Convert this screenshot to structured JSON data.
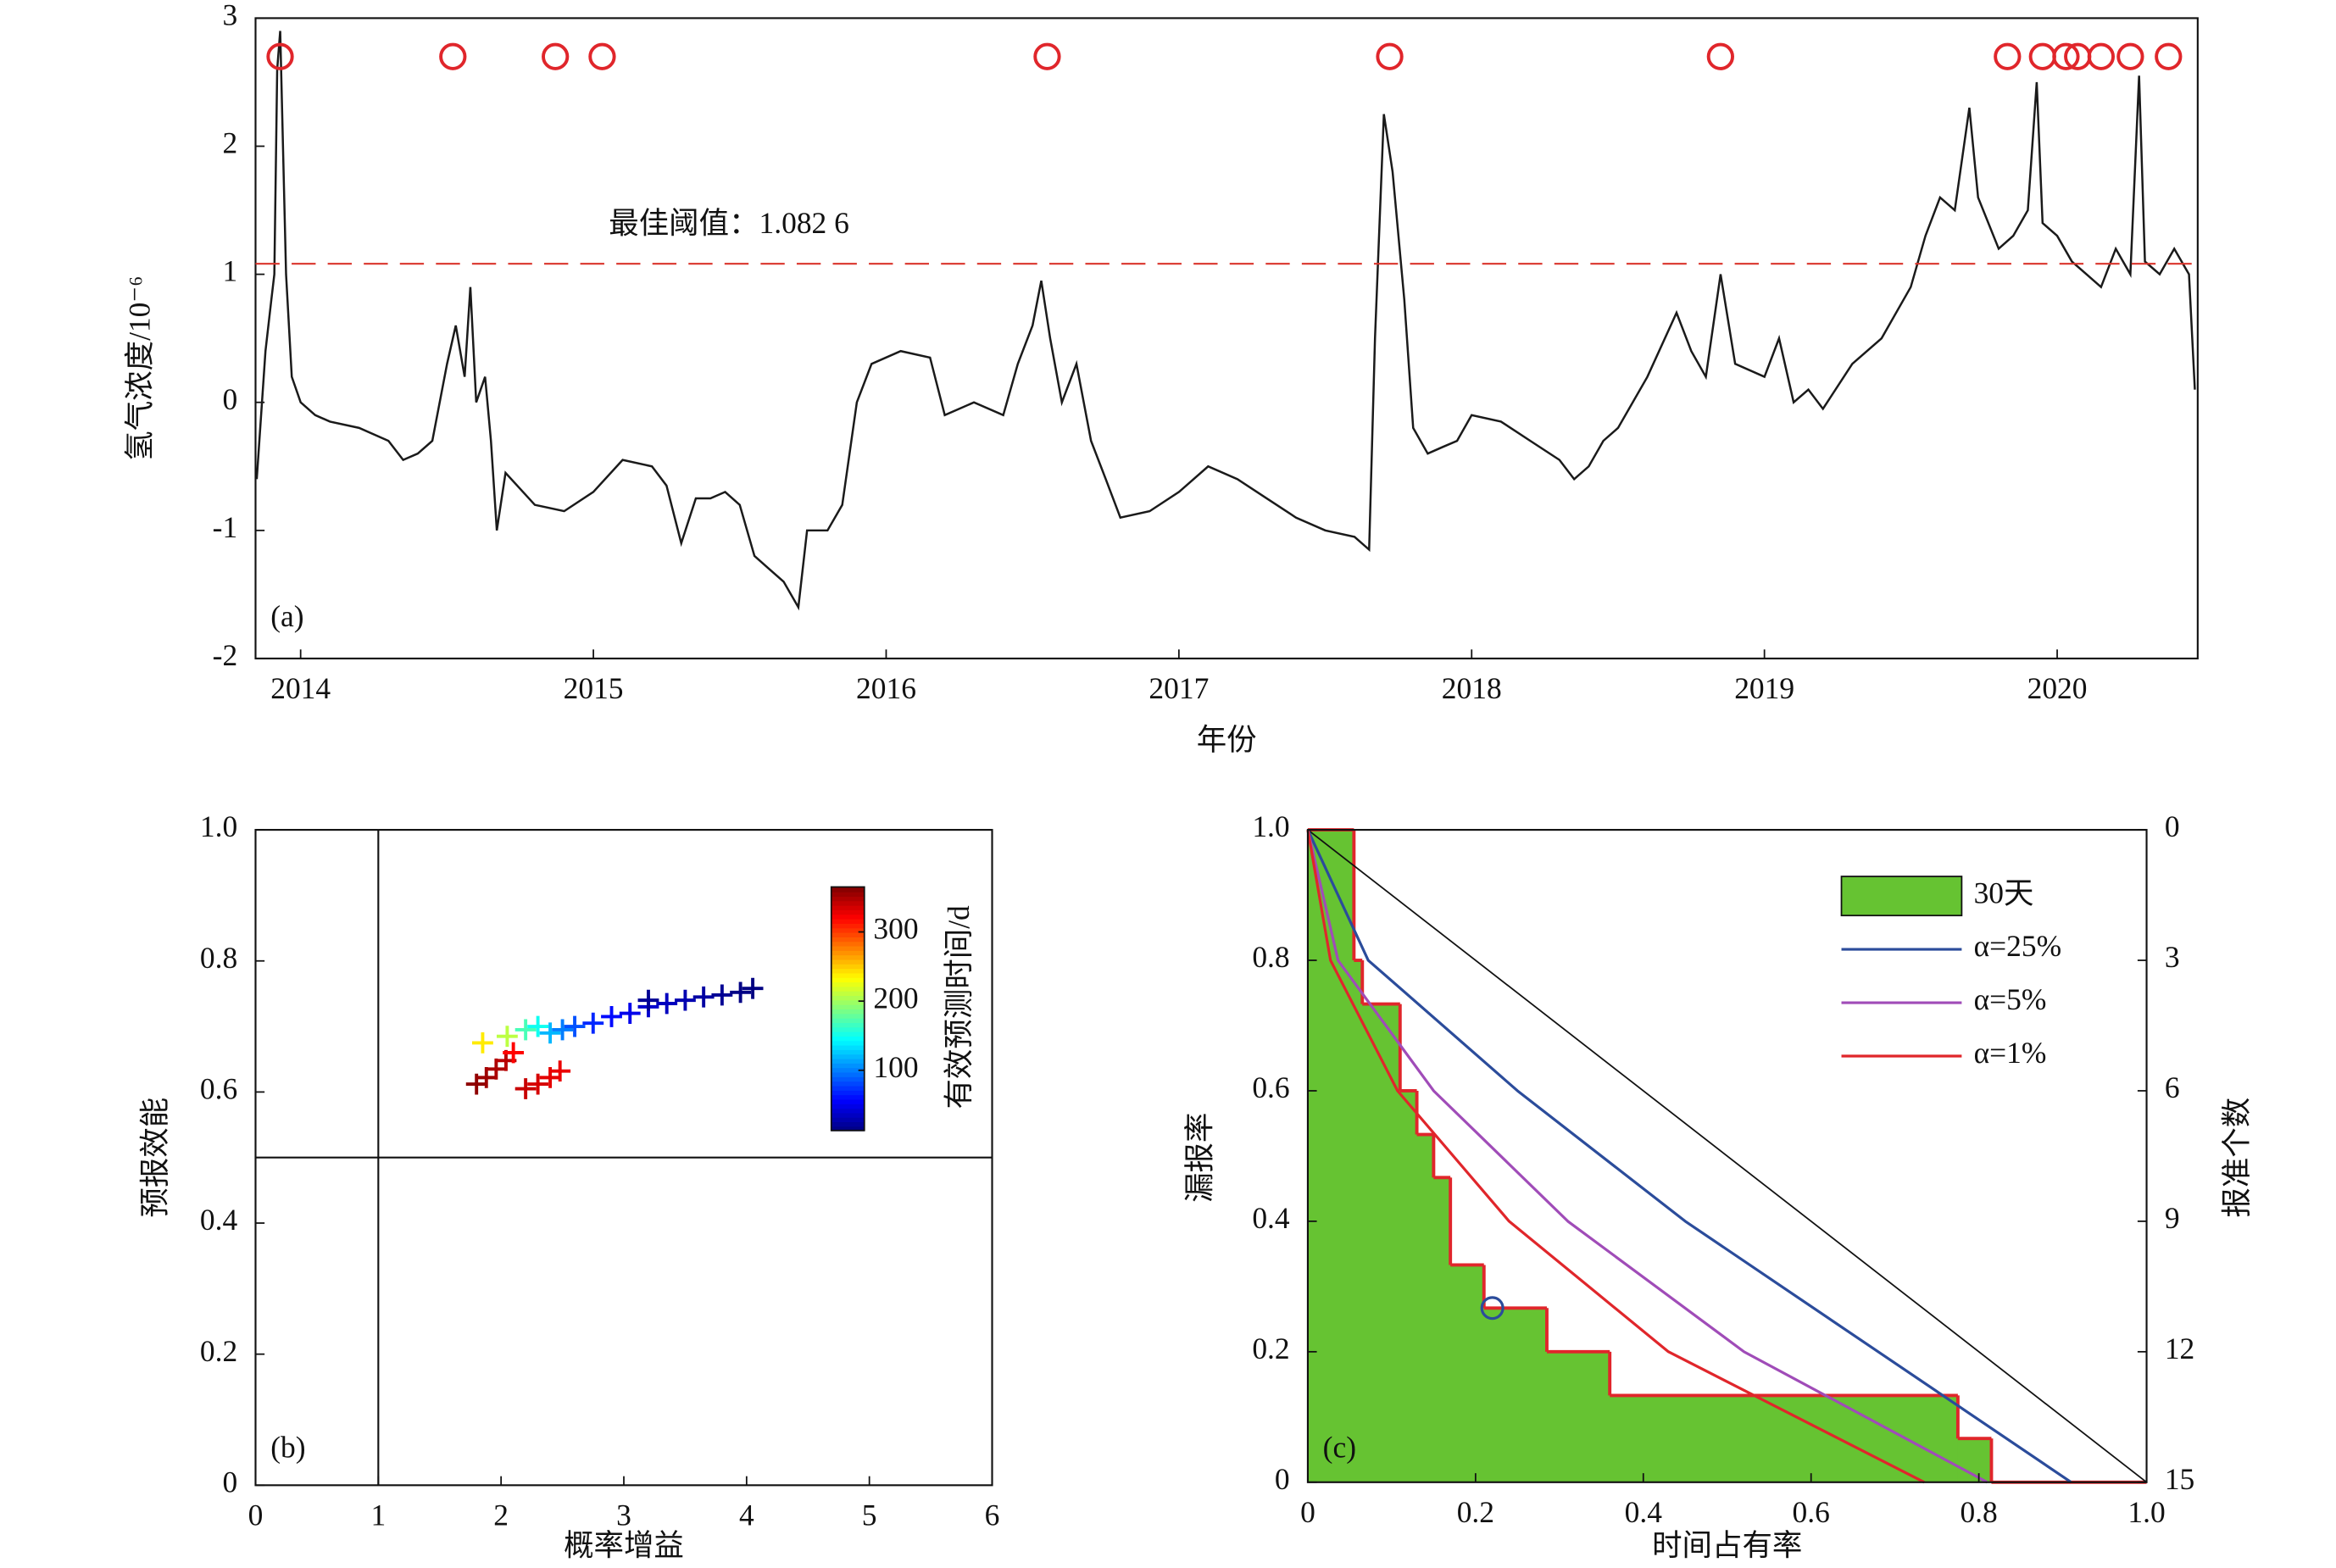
{
  "chart_data": [
    {
      "type": "line",
      "panel_label": "(a)",
      "xlabel": "年份",
      "ylabel": "氢气浓度/10⁻⁶",
      "xlim": [
        2013.846,
        2020.48
      ],
      "ylim": [
        -2,
        3
      ],
      "xticks": [
        2014,
        2015,
        2016,
        2017,
        2018,
        2019,
        2020
      ],
      "yticks": [
        -2,
        -1,
        0,
        1,
        2,
        3
      ],
      "series": [
        {
          "color": "#1a1a1a",
          "x": [
            2013.85,
            2013.88,
            2013.9,
            2013.91,
            2013.92,
            2013.93,
            2013.95,
            2013.97,
            2014.0,
            2014.05,
            2014.1,
            2014.2,
            2014.3,
            2014.35,
            2014.4,
            2014.45,
            2014.5,
            2014.53,
            2014.56,
            2014.58,
            2014.6,
            2014.63,
            2014.65,
            2014.67,
            2014.7,
            2014.8,
            2014.9,
            2015.0,
            2015.1,
            2015.2,
            2015.25,
            2015.3,
            2015.35,
            2015.4,
            2015.45,
            2015.5,
            2015.55,
            2015.6,
            2015.65,
            2015.7,
            2015.73,
            2015.8,
            2015.85,
            2015.9,
            2015.95,
            2016.05,
            2016.15,
            2016.2,
            2016.3,
            2016.4,
            2016.45,
            2016.5,
            2016.53,
            2016.56,
            2016.6,
            2016.65,
            2016.7,
            2016.75,
            2016.8,
            2016.9,
            2017.0,
            2017.1,
            2017.2,
            2017.3,
            2017.4,
            2017.5,
            2017.6,
            2017.65,
            2017.67,
            2017.7,
            2017.73,
            2017.77,
            2017.8,
            2017.85,
            2017.9,
            2017.95,
            2018.0,
            2018.1,
            2018.2,
            2018.3,
            2018.35,
            2018.4,
            2018.45,
            2018.5,
            2018.6,
            2018.7,
            2018.75,
            2018.8,
            2018.85,
            2018.9,
            2019.0,
            2019.05,
            2019.1,
            2019.15,
            2019.2,
            2019.3,
            2019.4,
            2019.5,
            2019.55,
            2019.6,
            2019.65,
            2019.7,
            2019.73,
            2019.8,
            2019.85,
            2019.9,
            2019.93,
            2019.95,
            2020.0,
            2020.05,
            2020.1,
            2020.15,
            2020.2,
            2020.25,
            2020.28,
            2020.3,
            2020.35,
            2020.4,
            2020.45,
            2020.47
          ],
          "values": [
            -0.6,
            0.4,
            0.8,
            1.0,
            2.6,
            2.9,
            1.0,
            0.2,
            0.0,
            -0.1,
            -0.15,
            -0.2,
            -0.3,
            -0.45,
            -0.4,
            -0.3,
            0.3,
            0.6,
            0.2,
            0.9,
            0.0,
            0.2,
            -0.3,
            -1.0,
            -0.55,
            -0.8,
            -0.85,
            -0.7,
            -0.45,
            -0.5,
            -0.65,
            -1.1,
            -0.75,
            -0.75,
            -0.7,
            -0.8,
            -1.2,
            -1.3,
            -1.4,
            -1.6,
            -1.0,
            -1.0,
            -0.8,
            0.0,
            0.3,
            0.4,
            0.35,
            -0.1,
            0.0,
            -0.1,
            0.3,
            0.6,
            0.95,
            0.5,
            0.0,
            0.3,
            -0.3,
            -0.6,
            -0.9,
            -0.85,
            -0.7,
            -0.5,
            -0.6,
            -0.75,
            -0.9,
            -1.0,
            -1.05,
            -1.15,
            0.5,
            2.25,
            1.8,
            0.8,
            -0.2,
            -0.4,
            -0.35,
            -0.3,
            -0.1,
            -0.15,
            -0.3,
            -0.45,
            -0.6,
            -0.5,
            -0.3,
            -0.2,
            0.2,
            0.7,
            0.4,
            0.2,
            1.0,
            0.3,
            0.2,
            0.5,
            0.0,
            0.1,
            -0.05,
            0.3,
            0.5,
            0.9,
            1.3,
            1.6,
            1.5,
            2.3,
            1.6,
            1.2,
            1.3,
            1.5,
            2.5,
            1.4,
            1.3,
            1.1,
            1.0,
            0.9,
            1.2,
            1.0,
            2.55,
            1.1,
            1.0,
            1.2,
            1.0,
            0.1
          ]
        }
      ],
      "threshold": {
        "value": 1.0826,
        "label": "最佳阈值：1.082 6",
        "color": "#d9342b"
      },
      "events": {
        "x": [
          2013.93,
          2014.52,
          2014.87,
          2015.03,
          2016.55,
          2017.72,
          2018.85,
          2019.83,
          2019.95,
          2020.03,
          2020.07,
          2020.15,
          2020.25,
          2020.38
        ],
        "y": 2.7,
        "color": "#e0262b"
      }
    },
    {
      "type": "scatter",
      "panel_label": "(b)",
      "xlabel": "概率增益",
      "ylabel": "预报效能",
      "xlim": [
        0,
        6
      ],
      "ylim": [
        0,
        1
      ],
      "xticks": [
        0,
        1,
        2,
        3,
        4,
        5,
        6
      ],
      "yticks": [
        0,
        0.2,
        0.4,
        0.6,
        0.8,
        {
          "value": 1,
          "label": "1.0"
        }
      ],
      "reference_lines": {
        "x": 1,
        "y": 0.5
      },
      "series": [
        {
          "marker": "+",
          "x": [
            1.8,
            1.88,
            1.96,
            2.04,
            2.1,
            1.85,
            2.05,
            2.2,
            2.3,
            2.4,
            2.5,
            2.6,
            2.75,
            2.9,
            3.05,
            3.2,
            3.35,
            3.5,
            3.65,
            3.8,
            3.95,
            4.05,
            3.2,
            2.2,
            2.3,
            2.4,
            2.48
          ],
          "values": [
            0.612,
            0.622,
            0.635,
            0.648,
            0.66,
            0.675,
            0.685,
            0.695,
            0.7,
            0.69,
            0.695,
            0.7,
            0.705,
            0.715,
            0.72,
            0.73,
            0.735,
            0.74,
            0.745,
            0.748,
            0.752,
            0.758,
            0.74,
            0.605,
            0.612,
            0.622,
            0.632
          ],
          "c": [
            360,
            355,
            350,
            345,
            320,
            240,
            210,
            170,
            150,
            120,
            100,
            85,
            70,
            60,
            50,
            40,
            35,
            30,
            25,
            20,
            15,
            14,
            20,
            340,
            335,
            330,
            328
          ]
        }
      ],
      "colorbar": {
        "label": "有效预测时间/d",
        "lim": [
          13,
          365
        ],
        "ticks": [
          100,
          200,
          300
        ],
        "colormap": "jet"
      }
    },
    {
      "type": "step",
      "panel_label": "(c)",
      "xlabel": "时间占有率",
      "ylabel": "漏报率",
      "y2label": "报准个数",
      "xlim": [
        0,
        1
      ],
      "ylim": [
        0,
        1
      ],
      "xticks": [
        0,
        0.2,
        0.4,
        0.6,
        0.8,
        {
          "value": 1,
          "label": "1.0"
        }
      ],
      "yticks": [
        0,
        0.2,
        0.4,
        0.6,
        0.8,
        {
          "value": 1,
          "label": "1.0"
        }
      ],
      "y2lim": [
        15,
        0
      ],
      "y2ticks": [
        0,
        3,
        6,
        9,
        12,
        15
      ],
      "diagonal": true,
      "legend": "upper right",
      "series": [
        {
          "name": "30天",
          "style": "step-fill",
          "color": "#66c332",
          "edge_color": "#e0262b",
          "edges": [
            0,
            0.055,
            0.065,
            0.11,
            0.13,
            0.15,
            0.17,
            0.21,
            0.285,
            0.36,
            0.775,
            0.815,
            1.0
          ],
          "values": [
            1,
            0.8,
            0.733,
            0.6,
            0.533,
            0.467,
            0.333,
            0.267,
            0.2,
            0.133,
            0.067,
            0
          ]
        },
        {
          "name": "α=25%",
          "style": "line",
          "color": "#2b4c9b",
          "x": [
            0,
            0.072,
            0.25,
            0.45,
            0.68,
            0.91
          ],
          "values": [
            1,
            0.8,
            0.6,
            0.4,
            0.2,
            0
          ]
        },
        {
          "name": "α=5%",
          "style": "line",
          "color": "#a04cb8",
          "x": [
            0,
            0.036,
            0.15,
            0.31,
            0.52,
            0.81
          ],
          "values": [
            1,
            0.8,
            0.6,
            0.4,
            0.2,
            0
          ]
        },
        {
          "name": "α=1%",
          "style": "line",
          "color": "#e0262b",
          "x": [
            0,
            0.027,
            0.107,
            0.24,
            0.43,
            0.735
          ],
          "values": [
            1,
            0.8,
            0.6,
            0.4,
            0.2,
            0
          ]
        }
      ],
      "point": {
        "x": 0.22,
        "y": 0.267,
        "color": "#2b4c9b"
      }
    }
  ]
}
